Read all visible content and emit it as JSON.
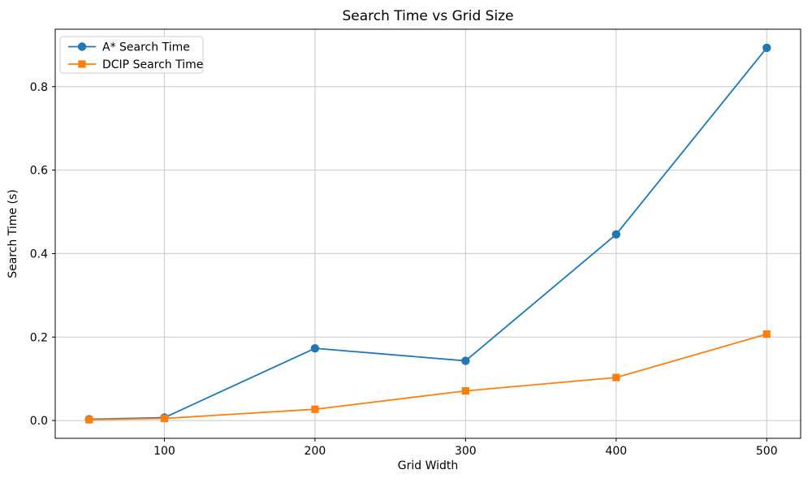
{
  "chart_data": {
    "type": "line",
    "title": "Search Time vs Grid Size",
    "xlabel": "Grid Width",
    "ylabel": "Search Time (s)",
    "x": [
      50,
      100,
      200,
      300,
      400,
      500
    ],
    "series": [
      {
        "name": "A* Search Time",
        "color": "#1f77b4",
        "marker": "circle",
        "values": [
          0.003,
          0.007,
          0.173,
          0.143,
          0.446,
          0.893
        ]
      },
      {
        "name": "DCIP Search Time",
        "color": "#ff7f0e",
        "marker": "square",
        "values": [
          0.002,
          0.005,
          0.027,
          0.071,
          0.103,
          0.207
        ]
      }
    ],
    "x_ticks": [
      100,
      200,
      300,
      400,
      500
    ],
    "y_ticks": [
      0.0,
      0.2,
      0.4,
      0.6,
      0.8
    ],
    "xlim": [
      27.5,
      522.5
    ],
    "ylim": [
      -0.0426,
      0.9376
    ],
    "grid": true,
    "legend_position": "upper-left",
    "colors": {
      "grid": "#c8c8c8",
      "spine": "#000000",
      "tick_text": "#000000",
      "legend_border": "#cccccc",
      "legend_bg": "#ffffff"
    }
  }
}
